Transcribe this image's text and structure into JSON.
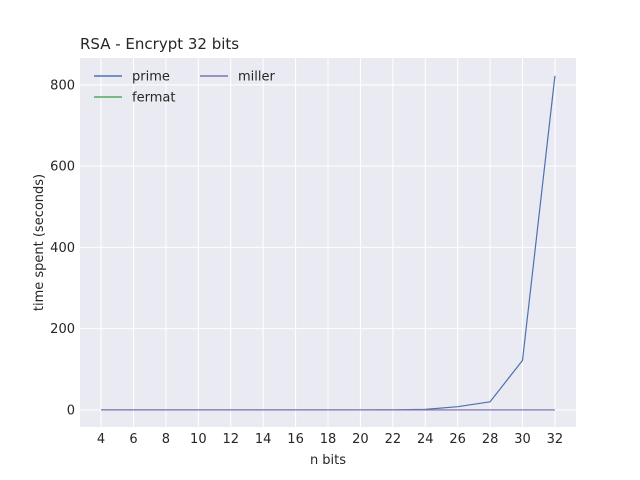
{
  "chart_data": {
    "type": "line",
    "title": "RSA - Encrypt 32 bits",
    "xlabel": "n bits",
    "ylabel": "time spent (seconds)",
    "x": [
      4,
      6,
      8,
      10,
      12,
      14,
      16,
      18,
      20,
      22,
      24,
      26,
      28,
      30,
      32
    ],
    "xticks": [
      "4",
      "6",
      "8",
      "10",
      "12",
      "14",
      "16",
      "18",
      "20",
      "22",
      "24",
      "26",
      "28",
      "30",
      "32"
    ],
    "yticks": [
      "0",
      "200",
      "400",
      "600",
      "800"
    ],
    "ytick_values": [
      0,
      200,
      400,
      600,
      800
    ],
    "xlim": [
      2.7,
      33.3
    ],
    "ylim": [
      -42,
      866
    ],
    "grid": true,
    "legend_position": "top-left",
    "background_color": "#EAEAF2",
    "series": [
      {
        "name": "prime",
        "color": "#4C72B0",
        "values": [
          0,
          0,
          0,
          0,
          0,
          0,
          0,
          0,
          0,
          0.3,
          1.3,
          8,
          20,
          122,
          822
        ]
      },
      {
        "name": "fermat",
        "color": "#55A868",
        "values": [
          0,
          0,
          0,
          0,
          0,
          0,
          0,
          0,
          0,
          0,
          0,
          0,
          0,
          0,
          0
        ]
      },
      {
        "name": "miller",
        "color": "#8172B2",
        "values": [
          0,
          0,
          0,
          0,
          0,
          0,
          0,
          0,
          0,
          0,
          0,
          0,
          0,
          0,
          0
        ]
      }
    ]
  }
}
